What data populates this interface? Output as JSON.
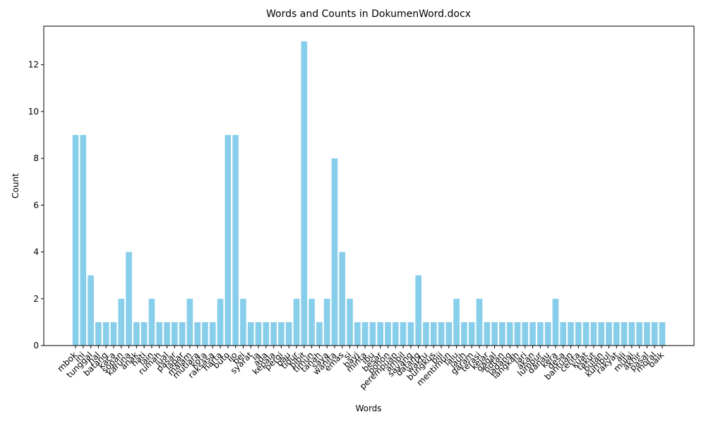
{
  "chart_data": {
    "type": "bar",
    "title": "Words and Counts in DokumenWord.docx",
    "x_label": "Words",
    "y_label": "Count",
    "color": "#87ceeb",
    "categories": [
      "mbok",
      "ini",
      "tunggal",
      "hal",
      "batang",
      "kaca",
      "sopan",
      "karuna",
      "anak",
      "hati",
      "lain",
      "rumah",
      "jual",
      "pasar",
      "lapar",
      "malam",
      "mutiara",
      "kota",
      "raksasa",
      "harta",
      "buto",
      "ijo",
      "bei",
      "syarat",
      "ia",
      "ada",
      "kepala",
      "pergi",
      "bau",
      "tidur",
      "bibit",
      "timun",
      "tanah",
      "saya",
      "wanita",
      "emas",
      "si",
      "bayi",
      "minta",
      "ibu",
      "besar",
      "pohon",
      "perempuan",
      "ambil",
      "sayang",
      "datang",
      "waktu",
      "bungkus",
      "biji",
      "mentimun",
      "lalu",
      "jauh",
      "garam",
      "terasi",
      "kejar",
      "gagal",
      "hutan",
      "ladang",
      "langkah",
      "lari",
      "akan",
      "lumpur",
      "danau",
      "kera",
      "desa",
      "bantuan",
      "cerita",
      "kuat",
      "takut",
      "bulan",
      "kumbul",
      "rakyat",
      "ali",
      "mulai",
      "akhir",
      "pasal",
      "moral",
      "baik"
    ],
    "values": [
      9,
      9,
      3,
      1,
      1,
      1,
      2,
      4,
      1,
      1,
      2,
      1,
      1,
      1,
      1,
      2,
      1,
      1,
      1,
      2,
      9,
      9,
      2,
      1,
      1,
      1,
      1,
      1,
      1,
      2,
      13,
      2,
      1,
      2,
      8,
      4,
      2,
      1,
      1,
      1,
      1,
      1,
      1,
      1,
      1,
      3,
      1,
      1,
      1,
      1,
      2,
      1,
      1,
      2,
      1,
      1,
      1,
      1,
      1,
      1,
      1,
      1,
      1,
      2,
      1,
      1,
      1,
      1,
      1,
      1,
      1,
      1,
      1,
      1,
      1,
      1,
      1,
      1
    ],
    "ylim": [
      0,
      13.65
    ],
    "yticks": [
      0,
      2,
      4,
      6,
      8,
      10,
      12
    ]
  }
}
